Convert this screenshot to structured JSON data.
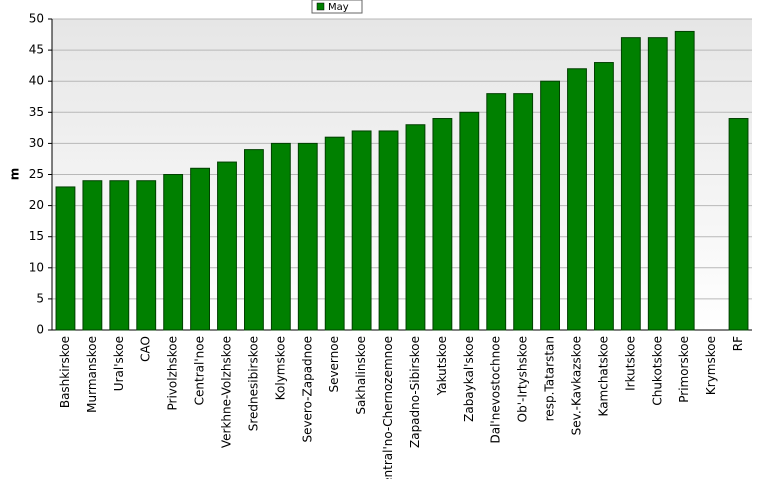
{
  "chart_data": {
    "type": "bar",
    "y_label": "m",
    "categories": [
      "Bashkirskoe",
      "Murmanskoe",
      "Ural'skoe",
      "CAO",
      "Privolzhskoe",
      "Central'noe",
      "Verkhne-Volzhskoe",
      "Srednesibirskoe",
      "Kolymskoe",
      "Severo-Zapadnoe",
      "Severnoe",
      "Sakhalinskoe",
      "Central'no-Chernozemnoe",
      "Zapadno-Sibirskoe",
      "Yakutskoe",
      "Zabaykal'skoe",
      "Dal'nevostochnoe",
      "Ob'-Irtyshskoe",
      "resp.Tatarstan",
      "Sev.-Kavkazskoe",
      "Kamchatskoe",
      "Irkutskoe",
      "Chukotskoe",
      "Primorskoe",
      "Krymskoe",
      "RF"
    ],
    "series": [
      {
        "name": "May",
        "color": "#008000",
        "values": [
          23,
          24,
          24,
          24,
          25,
          26,
          27,
          29,
          30,
          30,
          31,
          32,
          32,
          33,
          34,
          35,
          38,
          38,
          40,
          42,
          43,
          47,
          47,
          48,
          null,
          34
        ]
      }
    ],
    "ylim": [
      0,
      50
    ],
    "yticks": [
      0,
      5,
      10,
      15,
      20,
      25,
      30,
      35,
      40,
      45,
      50
    ],
    "grid": true
  }
}
